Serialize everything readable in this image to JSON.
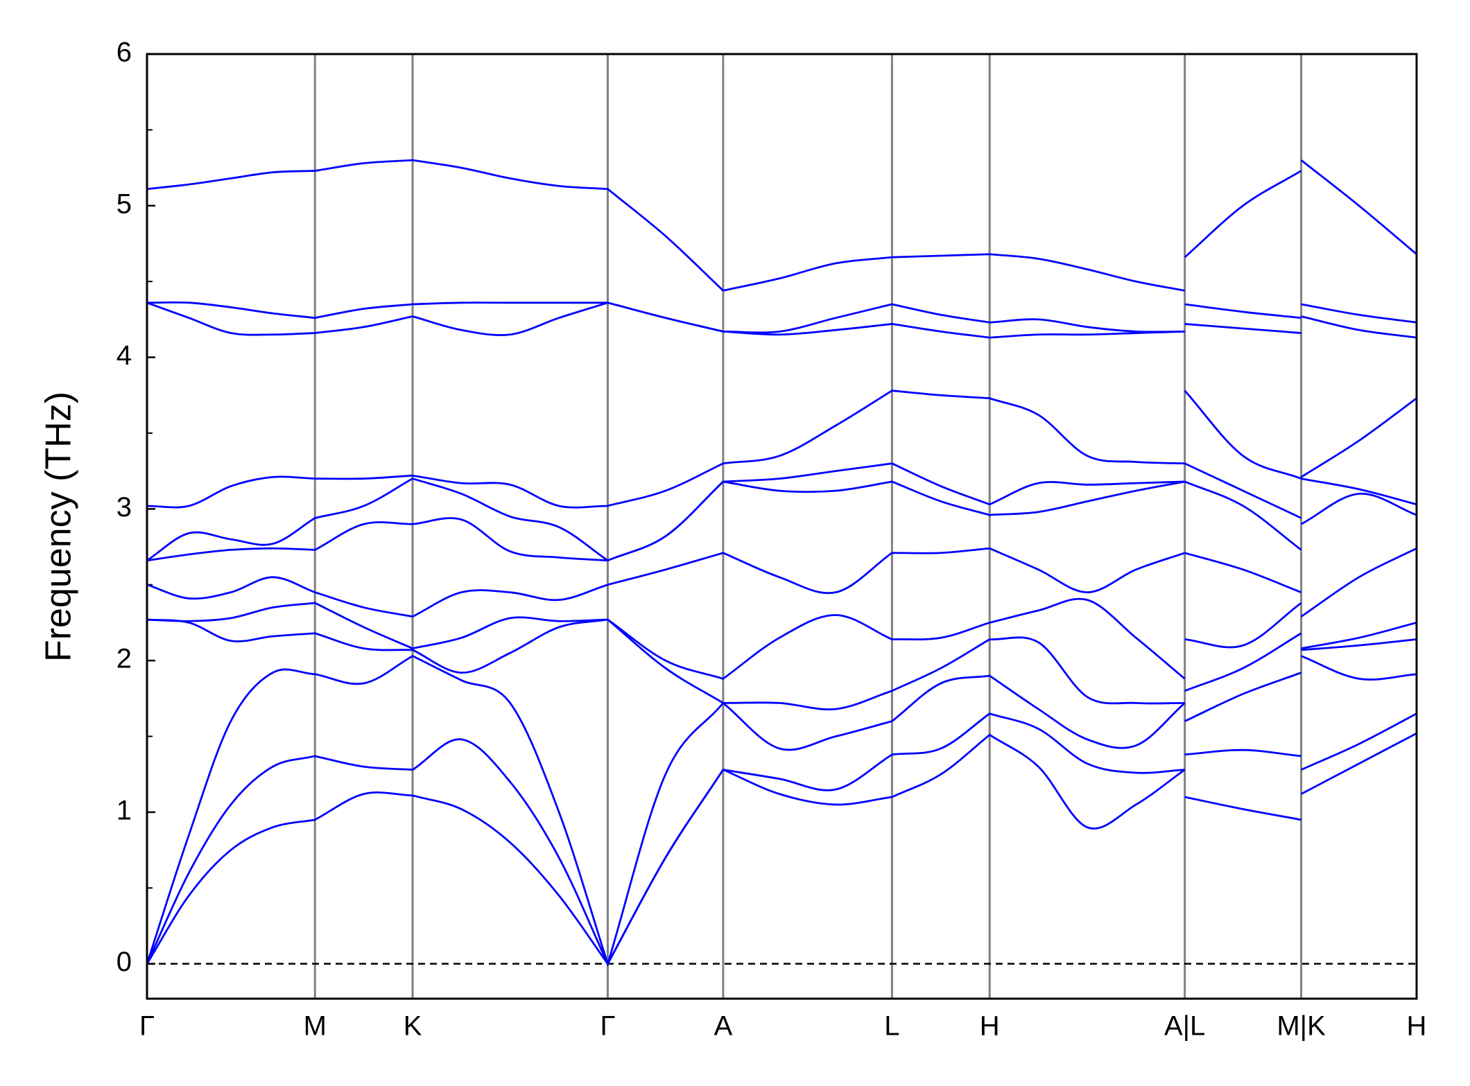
{
  "chart_data": {
    "type": "line",
    "y_label": "Frequency (THz)",
    "x": [
      0,
      0.033,
      0.066,
      0.099,
      0.1323,
      0.1708,
      0.2092,
      0.2476,
      0.286,
      0.3245,
      0.3629,
      0.4084,
      0.4538,
      0.4981,
      0.5425,
      0.5868,
      0.6253,
      0.6637,
      0.7021,
      0.7406,
      0.779,
      0.8174,
      0.8174,
      0.8174,
      0.8633,
      0.9091,
      0.9091,
      0.9091,
      0.9546,
      1.0
    ],
    "series": [
      {
        "color": "#0000ff",
        "values": [
          0,
          0.45,
          0.75,
          0.9,
          0.95,
          1.12,
          1.11,
          1.02,
          0.8,
          0.45,
          0,
          0.7,
          1.28,
          1.12,
          1.05,
          1.1,
          1.25,
          1.51,
          1.3,
          0.9,
          1.05,
          1.28,
          null,
          1.1,
          1.02,
          0.95,
          null,
          1.12,
          1.32,
          1.52
        ]
      },
      {
        "color": "#0000ff",
        "values": [
          0,
          0.6,
          1.05,
          1.3,
          1.37,
          1.3,
          1.28,
          1.48,
          1.2,
          0.7,
          0,
          0.7,
          1.28,
          1.22,
          1.15,
          1.38,
          1.42,
          1.65,
          1.55,
          1.32,
          1.26,
          1.28,
          null,
          1.38,
          1.41,
          1.37,
          null,
          1.28,
          1.45,
          1.65
        ]
      },
      {
        "color": "#0000ff",
        "values": [
          0,
          0.85,
          1.6,
          1.92,
          1.91,
          1.85,
          2.03,
          1.87,
          1.72,
          1.0,
          0,
          1.25,
          1.72,
          1.42,
          1.5,
          1.6,
          1.85,
          1.9,
          1.68,
          1.48,
          1.44,
          1.72,
          null,
          1.6,
          1.78,
          1.92,
          null,
          2.03,
          1.88,
          1.91
        ]
      },
      {
        "color": "#0000ff",
        "values": [
          2.27,
          2.25,
          2.13,
          2.16,
          2.18,
          2.08,
          2.07,
          1.92,
          2.05,
          2.22,
          2.27,
          1.95,
          1.72,
          1.72,
          1.68,
          1.8,
          1.95,
          2.14,
          2.12,
          1.76,
          1.72,
          1.72,
          null,
          1.8,
          1.95,
          2.18,
          null,
          2.07,
          2.1,
          2.14
        ]
      },
      {
        "color": "#0000ff",
        "values": [
          2.27,
          2.26,
          2.28,
          2.35,
          2.38,
          2.22,
          2.08,
          2.15,
          2.28,
          2.26,
          2.27,
          2.0,
          1.88,
          2.15,
          2.3,
          2.14,
          2.15,
          2.25,
          2.33,
          2.4,
          2.15,
          1.88,
          null,
          2.14,
          2.1,
          2.38,
          null,
          2.08,
          2.15,
          2.25
        ]
      },
      {
        "color": "#0000ff",
        "values": [
          2.5,
          2.41,
          2.45,
          2.55,
          2.45,
          2.35,
          2.29,
          2.45,
          2.45,
          2.4,
          2.5,
          2.6,
          2.71,
          2.55,
          2.45,
          2.71,
          2.71,
          2.74,
          2.6,
          2.45,
          2.6,
          2.71,
          null,
          2.71,
          2.6,
          2.45,
          null,
          2.29,
          2.55,
          2.74
        ]
      },
      {
        "color": "#0000ff",
        "values": [
          2.66,
          2.7,
          2.73,
          2.74,
          2.73,
          2.9,
          2.9,
          2.93,
          2.72,
          2.68,
          2.66,
          2.82,
          3.18,
          3.12,
          3.12,
          3.18,
          3.05,
          2.96,
          2.98,
          3.05,
          3.12,
          3.18,
          null,
          3.18,
          3.02,
          2.73,
          null,
          2.9,
          3.1,
          2.96
        ]
      },
      {
        "color": "#0000ff",
        "values": [
          2.66,
          2.84,
          2.8,
          2.77,
          2.94,
          3.02,
          3.2,
          3.1,
          2.95,
          2.88,
          2.66,
          2.82,
          3.18,
          3.2,
          3.25,
          3.3,
          3.15,
          3.03,
          3.17,
          3.16,
          3.17,
          3.18,
          null,
          3.3,
          3.12,
          2.94,
          null,
          3.2,
          3.13,
          3.03
        ]
      },
      {
        "color": "#0000ff",
        "values": [
          3.02,
          3.02,
          3.15,
          3.21,
          3.2,
          3.2,
          3.22,
          3.17,
          3.16,
          3.02,
          3.02,
          3.12,
          3.3,
          3.35,
          3.55,
          3.78,
          3.75,
          3.73,
          3.62,
          3.35,
          3.31,
          3.3,
          null,
          3.78,
          3.35,
          3.2,
          null,
          3.21,
          3.45,
          3.73
        ]
      },
      {
        "color": "#0000ff",
        "values": [
          4.36,
          4.26,
          4.16,
          4.15,
          4.16,
          4.2,
          4.27,
          4.18,
          4.15,
          4.26,
          4.36,
          4.26,
          4.17,
          4.15,
          4.18,
          4.22,
          4.17,
          4.13,
          4.15,
          4.15,
          4.16,
          4.17,
          null,
          4.22,
          4.19,
          4.16,
          null,
          4.27,
          4.18,
          4.13
        ]
      },
      {
        "color": "#0000ff",
        "values": [
          4.36,
          4.36,
          4.33,
          4.29,
          4.26,
          4.32,
          4.35,
          4.36,
          4.36,
          4.36,
          4.36,
          4.26,
          4.17,
          4.17,
          4.26,
          4.35,
          4.28,
          4.23,
          4.25,
          4.2,
          4.17,
          4.17,
          null,
          4.35,
          4.3,
          4.26,
          null,
          4.35,
          4.28,
          4.23
        ]
      },
      {
        "color": "#0000ff",
        "values": [
          5.11,
          5.14,
          5.18,
          5.22,
          5.23,
          5.28,
          5.3,
          5.25,
          5.18,
          5.13,
          5.11,
          4.8,
          4.44,
          4.52,
          4.62,
          4.66,
          4.67,
          4.68,
          4.65,
          4.58,
          4.5,
          4.44,
          null,
          4.66,
          5.0,
          5.23,
          null,
          5.3,
          5.0,
          4.68
        ]
      }
    ],
    "xlim": [
      0,
      1
    ],
    "xticks": [
      {
        "value": 0,
        "label": "Γ"
      },
      {
        "value": 0.1323,
        "label": "M"
      },
      {
        "value": 0.2092,
        "label": "K"
      },
      {
        "value": 0.3629,
        "label": "Γ"
      },
      {
        "value": 0.4538,
        "label": "A"
      },
      {
        "value": 0.5868,
        "label": "L"
      },
      {
        "value": 0.6637,
        "label": "H"
      },
      {
        "value": 0.8174,
        "label": "A|L"
      },
      {
        "value": 0.9091,
        "label": "M|K"
      },
      {
        "value": 1.0,
        "label": "H"
      }
    ],
    "ylim": [
      -0.23,
      6
    ],
    "yticks": [
      0,
      1,
      2,
      3,
      4,
      5,
      6
    ],
    "yticks_minor": [
      0.5,
      1.5,
      2.5,
      3.5,
      4.5,
      5.5
    ],
    "vertical_lines": true,
    "zero_line": true
  }
}
